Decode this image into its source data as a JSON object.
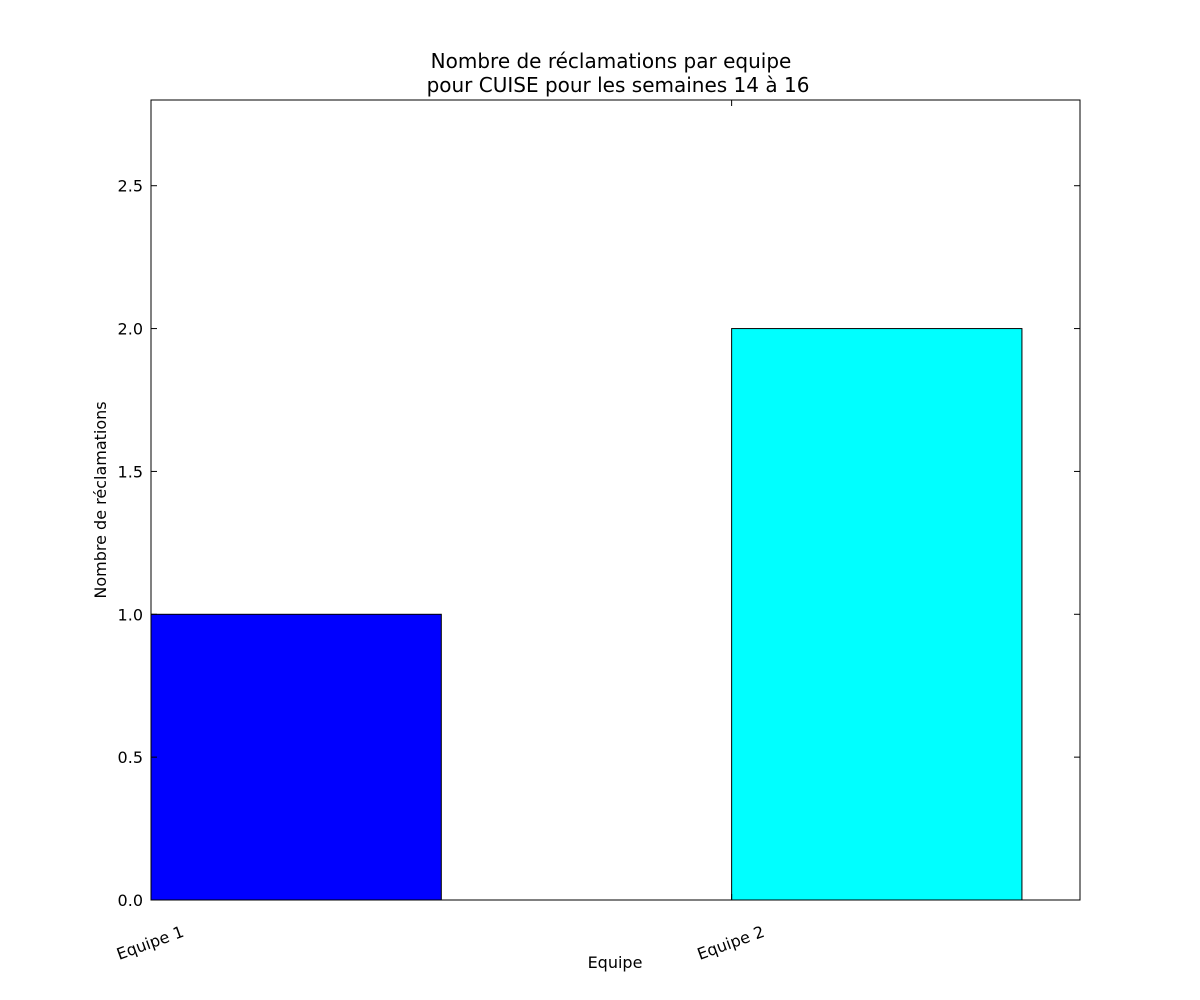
{
  "chart_data": {
    "type": "bar",
    "title_line1": "Nombre de réclamations par equipe",
    "title_line2": "pour CUISE pour les semaines 14 à 16",
    "xlabel": "Equipe",
    "ylabel": "Nombre de réclamations",
    "categories": [
      "Equipe 1",
      "Equipe 2"
    ],
    "values": [
      1.0,
      2.0
    ],
    "colors": [
      "#0000ff",
      "#00ffff"
    ],
    "ylim": [
      0,
      2.8
    ],
    "yticks": [
      0.0,
      0.5,
      1.0,
      1.5,
      2.0,
      2.5
    ],
    "ytick_labels": [
      "0.0",
      "0.5",
      "1.0",
      "1.5",
      "2.0",
      "2.5"
    ],
    "grid": false
  }
}
